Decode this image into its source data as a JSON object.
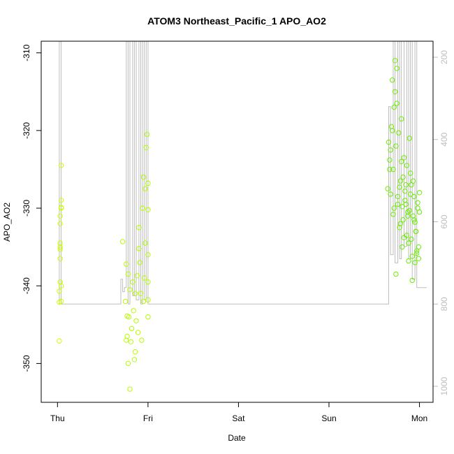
{
  "chart_data": {
    "type": "scatter",
    "title": "ATOM3 Northeast_Pacific_1 APO_AO2",
    "xlabel": "Date",
    "ylabel": "APO_AO2",
    "x_ticks": [
      "Thu",
      "Fri",
      "Sat",
      "Sun",
      "Mon"
    ],
    "xlim_days": [
      -0.18,
      4.15
    ],
    "ylim": [
      -355,
      -308.5
    ],
    "y_ticks": [
      -310,
      -320,
      -330,
      -340,
      -350
    ],
    "y2_ticks": [
      200,
      400,
      600,
      800,
      1000
    ],
    "y2lim": [
      1039,
      161
    ],
    "colors": {
      "points_gradient": [
        "#ccff00",
        "#66ee00"
      ],
      "altitude_line": "#bebebe"
    },
    "series": [
      {
        "kind": "points",
        "x_days": [
          0.02,
          0.02,
          0.02,
          0.03,
          0.03,
          0.03,
          0.03,
          0.03,
          0.03,
          0.03,
          0.04,
          0.04,
          0.04,
          0.04,
          0.04,
          0.04,
          0.72,
          0.75,
          0.76,
          0.76,
          0.77,
          0.77,
          0.78,
          0.78,
          0.79,
          0.8,
          0.8,
          0.81,
          0.82,
          0.83,
          0.84,
          0.85,
          0.86,
          0.86,
          0.87,
          0.88,
          0.89,
          0.9,
          0.9,
          0.91,
          0.92,
          0.93,
          0.94,
          0.95,
          0.95,
          0.96,
          0.97,
          0.97,
          0.98,
          0.99,
          1.0,
          1.0,
          1.0,
          1.0,
          1.0,
          1.0,
          3.65,
          3.66,
          3.67,
          3.68,
          3.69,
          3.7,
          3.71,
          3.72,
          3.73,
          3.74,
          3.75,
          3.76,
          3.77,
          3.78,
          3.79,
          3.8,
          3.81,
          3.82,
          3.83,
          3.84,
          3.85,
          3.86,
          3.87,
          3.88,
          3.89,
          3.9,
          3.91,
          3.92,
          3.93,
          3.94,
          3.95,
          3.96,
          3.97,
          3.98,
          3.99,
          4.0,
          3.67,
          3.7,
          3.73,
          3.76,
          3.79,
          3.82,
          3.85,
          3.88,
          3.91,
          3.94,
          3.97,
          4.0,
          3.68,
          3.72,
          3.75,
          3.8,
          3.84,
          3.87,
          3.9,
          3.93,
          3.96,
          3.99,
          3.71,
          3.74,
          3.78,
          3.81,
          3.83,
          3.86,
          3.89,
          3.92,
          3.95,
          3.98
        ],
        "y": [
          -340.7,
          -342.1,
          -347.1,
          -335.0,
          -336.5,
          -339.5,
          -332.0,
          -334.5,
          -335.3,
          -331.0,
          -329.0,
          -330.0,
          -329.9,
          -324.5,
          -342.0,
          -340.0,
          -334.3,
          -342.0,
          -347.0,
          -337.2,
          -343.9,
          -346.5,
          -338.5,
          -350.0,
          -344.0,
          -353.3,
          -340.5,
          -347.2,
          -345.5,
          -339.5,
          -343.2,
          -349.5,
          -341.0,
          -348.5,
          -344.5,
          -338.7,
          -346.0,
          -332.5,
          -335.2,
          -337.0,
          -341.0,
          -347.0,
          -330.0,
          -326.0,
          -342.0,
          -339.0,
          -327.5,
          -334.5,
          -322.2,
          -320.5,
          -326.8,
          -330.2,
          -336.0,
          -339.5,
          -341.8,
          -344.0,
          -327.5,
          -321.5,
          -323.8,
          -328.2,
          -319.5,
          -313.5,
          -325.0,
          -330.0,
          -311.0,
          -322.0,
          -316.5,
          -329.5,
          -320.3,
          -332.5,
          -326.5,
          -318.5,
          -335.0,
          -331.5,
          -323.5,
          -329.0,
          -327.0,
          -333.5,
          -330.5,
          -336.8,
          -321.0,
          -325.5,
          -334.0,
          -339.3,
          -331.0,
          -328.5,
          -337.0,
          -333.0,
          -335.8,
          -330.0,
          -336.5,
          -328.0,
          -325.0,
          -320.0,
          -315.0,
          -328.5,
          -332.0,
          -326.0,
          -329.5,
          -334.5,
          -327.0,
          -331.5,
          -335.5,
          -330.5,
          -322.5,
          -317.0,
          -312.0,
          -324.0,
          -327.8,
          -331.0,
          -328.2,
          -326.5,
          -333.0,
          -335.0,
          -330.8,
          -338.5,
          -327.3,
          -329.8,
          -333.8,
          -324.5,
          -330.3,
          -336.2,
          -331.8,
          -329.3
        ]
      },
      {
        "kind": "altitude_line",
        "name": "altitude",
        "x_days": [
          0.02,
          0.02,
          0.04,
          0.04,
          0.7,
          0.7,
          0.72,
          0.72,
          0.74,
          0.74,
          0.76,
          0.76,
          0.78,
          0.78,
          0.8,
          0.8,
          0.83,
          0.83,
          0.85,
          0.85,
          0.87,
          0.87,
          0.9,
          0.9,
          0.92,
          0.92,
          0.94,
          0.94,
          0.96,
          0.96,
          0.98,
          0.98,
          1.0,
          1.0,
          3.66,
          3.66,
          3.68,
          3.68,
          3.71,
          3.71,
          3.73,
          3.73,
          3.76,
          3.76,
          3.78,
          3.78,
          3.8,
          3.8,
          3.83,
          3.83,
          3.86,
          3.86,
          3.88,
          3.88,
          3.9,
          3.9,
          3.92,
          3.92,
          3.95,
          3.95,
          3.97,
          3.97,
          4.0,
          4.0,
          4.08,
          4.08
        ],
        "y2": [
          800,
          150,
          150,
          800,
          800,
          740,
          740,
          770,
          770,
          760,
          760,
          150,
          150,
          800,
          800,
          150,
          150,
          780,
          780,
          150,
          150,
          790,
          790,
          150,
          150,
          800,
          800,
          150,
          150,
          790,
          790,
          150,
          150,
          800,
          800,
          320,
          320,
          680,
          680,
          150,
          150,
          700,
          700,
          150,
          150,
          690,
          690,
          150,
          150,
          660,
          660,
          150,
          150,
          690,
          690,
          150,
          150,
          740,
          740,
          150,
          150,
          760,
          760,
          760,
          760,
          760
        ]
      }
    ]
  }
}
